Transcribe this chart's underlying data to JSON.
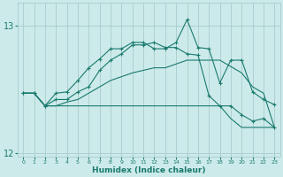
{
  "xlabel": "Humidex (Indice chaleur)",
  "bg_color": "#cceaea",
  "grid_color": "#aacccc",
  "line_color": "#1a7a6e",
  "x_values": [
    0,
    1,
    2,
    3,
    4,
    5,
    6,
    7,
    8,
    9,
    10,
    11,
    12,
    13,
    14,
    15,
    16,
    17,
    18,
    19,
    20,
    21,
    22,
    23
  ],
  "line1": [
    12.47,
    12.47,
    12.37,
    12.47,
    12.48,
    12.57,
    12.67,
    12.74,
    12.82,
    12.82,
    12.87,
    12.87,
    12.82,
    12.82,
    12.87,
    13.05,
    12.83,
    12.82,
    12.55,
    12.73,
    12.73,
    12.48,
    12.42,
    12.38
  ],
  "line2": [
    12.47,
    12.47,
    12.37,
    12.42,
    12.42,
    12.48,
    12.52,
    12.65,
    12.73,
    12.78,
    12.85,
    12.85,
    12.87,
    12.83,
    12.83,
    12.78,
    12.77,
    12.45,
    12.37,
    12.37,
    12.3,
    12.25,
    12.27,
    12.2
  ],
  "line3": [
    12.47,
    12.47,
    12.37,
    12.37,
    12.4,
    12.42,
    12.47,
    12.52,
    12.57,
    12.6,
    12.63,
    12.65,
    12.67,
    12.67,
    12.7,
    12.73,
    12.73,
    12.73,
    12.73,
    12.68,
    12.63,
    12.52,
    12.47,
    12.2
  ],
  "line4": [
    12.47,
    12.47,
    12.37,
    12.37,
    12.37,
    12.37,
    12.37,
    12.37,
    12.37,
    12.37,
    12.37,
    12.37,
    12.37,
    12.37,
    12.37,
    12.37,
    12.37,
    12.37,
    12.37,
    12.27,
    12.2,
    12.2,
    12.2,
    12.2
  ],
  "ylim": [
    11.97,
    13.18
  ],
  "yticks": [
    12,
    13
  ],
  "xlim": [
    -0.5,
    23.5
  ]
}
